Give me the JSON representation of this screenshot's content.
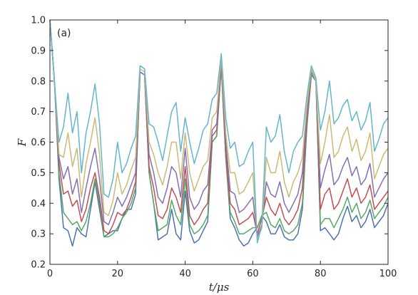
{
  "chart_data": {
    "type": "line",
    "panel_label": "(a)",
    "xlabel": "t/μs",
    "ylabel": "F",
    "xlim": [
      0,
      100
    ],
    "ylim": [
      0.2,
      1.0
    ],
    "xticks": [
      0,
      20,
      40,
      60,
      80,
      100
    ],
    "yticks": [
      0.2,
      0.3,
      0.4,
      0.5,
      0.6,
      0.7,
      0.8,
      0.9,
      1.0
    ],
    "grid": false,
    "legend": "none",
    "x": [
      0,
      1.33,
      2.67,
      4.0,
      5.33,
      6.67,
      8.0,
      9.33,
      10.67,
      12.0,
      13.33,
      14.67,
      16.0,
      17.33,
      18.67,
      20.0,
      21.33,
      22.67,
      24.0,
      25.33,
      26.67,
      28.0,
      29.33,
      30.67,
      32.0,
      33.33,
      34.67,
      36.0,
      37.33,
      38.67,
      40.0,
      41.33,
      42.67,
      44.0,
      45.33,
      46.67,
      48.0,
      49.33,
      50.67,
      52.0,
      53.33,
      54.67,
      56.0,
      57.33,
      58.67,
      60.0,
      61.33,
      62.67,
      64.0,
      65.33,
      66.67,
      68.0,
      69.33,
      70.67,
      72.0,
      73.33,
      74.67,
      76.0,
      77.33,
      78.67,
      80.0,
      81.33,
      82.67,
      84.0,
      85.33,
      86.67,
      88.0,
      89.33,
      90.67,
      92.0,
      93.33,
      94.67,
      96.0,
      97.33,
      98.67,
      100.0
    ],
    "series": [
      {
        "color": "#4c72b0",
        "values": [
          1.0,
          0.8,
          0.48,
          0.32,
          0.31,
          0.26,
          0.32,
          0.3,
          0.29,
          0.38,
          0.47,
          0.38,
          0.29,
          0.3,
          0.31,
          0.31,
          0.35,
          0.38,
          0.38,
          0.43,
          0.83,
          0.82,
          0.5,
          0.4,
          0.28,
          0.29,
          0.3,
          0.38,
          0.3,
          0.28,
          0.44,
          0.31,
          0.27,
          0.28,
          0.31,
          0.34,
          0.6,
          0.62,
          0.85,
          0.55,
          0.35,
          0.32,
          0.28,
          0.26,
          0.27,
          0.3,
          0.32,
          0.36,
          0.34,
          0.3,
          0.3,
          0.33,
          0.29,
          0.28,
          0.28,
          0.3,
          0.38,
          0.65,
          0.82,
          0.8,
          0.31,
          0.32,
          0.3,
          0.28,
          0.3,
          0.35,
          0.39,
          0.34,
          0.36,
          0.32,
          0.34,
          0.38,
          0.32,
          0.34,
          0.36,
          0.4
        ]
      },
      {
        "color": "#55a868",
        "values": [
          1.0,
          0.8,
          0.5,
          0.37,
          0.35,
          0.33,
          0.34,
          0.31,
          0.34,
          0.4,
          0.48,
          0.4,
          0.29,
          0.29,
          0.3,
          0.32,
          0.35,
          0.37,
          0.4,
          0.45,
          0.83,
          0.82,
          0.5,
          0.4,
          0.31,
          0.32,
          0.33,
          0.41,
          0.36,
          0.33,
          0.48,
          0.33,
          0.3,
          0.31,
          0.33,
          0.36,
          0.6,
          0.62,
          0.85,
          0.55,
          0.37,
          0.34,
          0.3,
          0.3,
          0.31,
          0.32,
          0.32,
          0.36,
          0.37,
          0.33,
          0.32,
          0.35,
          0.31,
          0.3,
          0.31,
          0.33,
          0.4,
          0.66,
          0.82,
          0.8,
          0.33,
          0.35,
          0.35,
          0.32,
          0.35,
          0.38,
          0.42,
          0.37,
          0.4,
          0.35,
          0.37,
          0.41,
          0.35,
          0.37,
          0.39,
          0.42
        ]
      },
      {
        "color": "#c44e52",
        "values": [
          1.0,
          0.8,
          0.53,
          0.43,
          0.44,
          0.39,
          0.41,
          0.34,
          0.38,
          0.45,
          0.5,
          0.42,
          0.31,
          0.3,
          0.33,
          0.37,
          0.36,
          0.38,
          0.42,
          0.47,
          0.83,
          0.82,
          0.52,
          0.45,
          0.36,
          0.35,
          0.38,
          0.45,
          0.42,
          0.37,
          0.52,
          0.36,
          0.33,
          0.35,
          0.38,
          0.4,
          0.62,
          0.64,
          0.86,
          0.57,
          0.4,
          0.38,
          0.33,
          0.34,
          0.35,
          0.37,
          0.3,
          0.35,
          0.42,
          0.38,
          0.36,
          0.4,
          0.35,
          0.33,
          0.35,
          0.38,
          0.45,
          0.68,
          0.83,
          0.8,
          0.38,
          0.43,
          0.45,
          0.38,
          0.4,
          0.44,
          0.48,
          0.42,
          0.45,
          0.4,
          0.42,
          0.46,
          0.38,
          0.4,
          0.42,
          0.44
        ]
      },
      {
        "color": "#8172b2",
        "values": [
          1.0,
          0.8,
          0.55,
          0.48,
          0.52,
          0.43,
          0.48,
          0.37,
          0.45,
          0.52,
          0.58,
          0.48,
          0.34,
          0.33,
          0.37,
          0.42,
          0.39,
          0.42,
          0.46,
          0.5,
          0.83,
          0.82,
          0.56,
          0.5,
          0.42,
          0.4,
          0.45,
          0.52,
          0.5,
          0.42,
          0.58,
          0.42,
          0.38,
          0.4,
          0.44,
          0.46,
          0.64,
          0.66,
          0.87,
          0.6,
          0.44,
          0.43,
          0.37,
          0.38,
          0.4,
          0.42,
          0.29,
          0.33,
          0.47,
          0.43,
          0.42,
          0.47,
          0.4,
          0.37,
          0.4,
          0.43,
          0.5,
          0.7,
          0.83,
          0.8,
          0.45,
          0.51,
          0.56,
          0.46,
          0.48,
          0.52,
          0.55,
          0.49,
          0.52,
          0.46,
          0.48,
          0.53,
          0.42,
          0.45,
          0.48,
          0.5
        ]
      },
      {
        "color": "#ccb974",
        "values": [
          1.0,
          0.8,
          0.56,
          0.55,
          0.63,
          0.52,
          0.58,
          0.42,
          0.53,
          0.6,
          0.68,
          0.56,
          0.37,
          0.36,
          0.41,
          0.5,
          0.43,
          0.46,
          0.51,
          0.55,
          0.84,
          0.83,
          0.6,
          0.56,
          0.5,
          0.46,
          0.52,
          0.6,
          0.6,
          0.48,
          0.63,
          0.5,
          0.44,
          0.48,
          0.52,
          0.54,
          0.68,
          0.7,
          0.88,
          0.63,
          0.5,
          0.5,
          0.43,
          0.44,
          0.47,
          0.5,
          0.28,
          0.32,
          0.55,
          0.5,
          0.5,
          0.57,
          0.47,
          0.42,
          0.47,
          0.5,
          0.55,
          0.72,
          0.84,
          0.8,
          0.53,
          0.6,
          0.69,
          0.55,
          0.57,
          0.62,
          0.65,
          0.57,
          0.61,
          0.54,
          0.57,
          0.63,
          0.48,
          0.52,
          0.56,
          0.58
        ]
      },
      {
        "color": "#64b5cd",
        "values": [
          1.0,
          0.8,
          0.6,
          0.65,
          0.76,
          0.63,
          0.7,
          0.5,
          0.63,
          0.7,
          0.79,
          0.66,
          0.43,
          0.42,
          0.48,
          0.6,
          0.5,
          0.53,
          0.58,
          0.62,
          0.85,
          0.84,
          0.66,
          0.65,
          0.6,
          0.54,
          0.62,
          0.7,
          0.73,
          0.57,
          0.68,
          0.6,
          0.53,
          0.58,
          0.64,
          0.66,
          0.74,
          0.76,
          0.89,
          0.68,
          0.58,
          0.6,
          0.52,
          0.53,
          0.57,
          0.6,
          0.27,
          0.33,
          0.65,
          0.6,
          0.62,
          0.69,
          0.57,
          0.5,
          0.57,
          0.6,
          0.62,
          0.75,
          0.85,
          0.81,
          0.64,
          0.7,
          0.8,
          0.66,
          0.68,
          0.72,
          0.74,
          0.67,
          0.7,
          0.64,
          0.67,
          0.73,
          0.57,
          0.61,
          0.66,
          0.68
        ]
      }
    ]
  }
}
